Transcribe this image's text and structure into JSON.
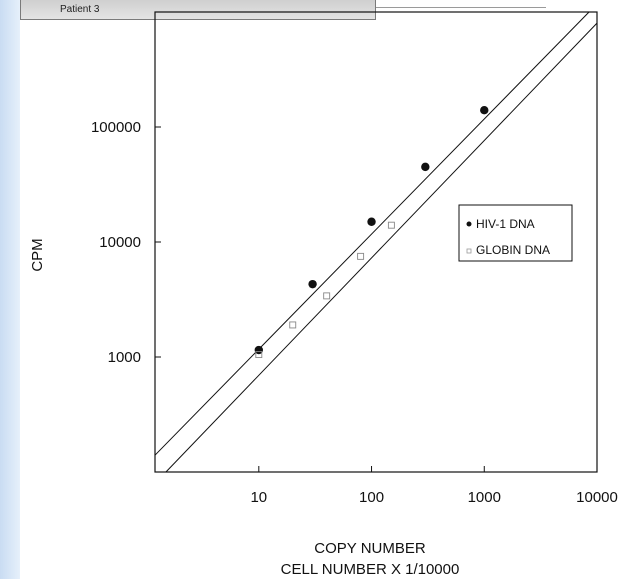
{
  "caption": "Patient 3",
  "chart_data": {
    "type": "scatter",
    "title": "",
    "xlabel": [
      "COPY NUMBER",
      "CELL NUMBER X 1/10000"
    ],
    "ylabel": "CPM",
    "xscale": "log",
    "yscale": "log",
    "xlim": [
      1.2,
      10000
    ],
    "ylim": [
      100,
      1000000
    ],
    "x_ticks": [
      10,
      100,
      1000,
      10000
    ],
    "x_tick_labels": [
      "10",
      "100",
      "1000",
      "10000"
    ],
    "y_ticks": [
      1000,
      10000,
      100000
    ],
    "y_tick_labels": [
      "1000",
      "10000",
      "100000"
    ],
    "grid": false,
    "legend_position": "right",
    "series": [
      {
        "name": "HIV-1 DNA",
        "marker": "filled-circle",
        "points": [
          {
            "x": 10,
            "y": 1150
          },
          {
            "x": 30,
            "y": 4300
          },
          {
            "x": 100,
            "y": 15000
          },
          {
            "x": 300,
            "y": 45000
          },
          {
            "x": 1000,
            "y": 140000
          }
        ]
      },
      {
        "name": "GLOBIN DNA",
        "marker": "open-square",
        "points": [
          {
            "x": 10,
            "y": 1050
          },
          {
            "x": 20,
            "y": 1900
          },
          {
            "x": 40,
            "y": 3400
          },
          {
            "x": 80,
            "y": 7500
          },
          {
            "x": 150,
            "y": 14000
          }
        ]
      }
    ],
    "fit_lines": [
      {
        "name": "upper",
        "from": {
          "x": 1.2,
          "y": 140
        },
        "to": {
          "x": 8500,
          "y": 1000000
        }
      },
      {
        "name": "lower",
        "from": {
          "x": 1.5,
          "y": 100
        },
        "to": {
          "x": 10000,
          "y": 800000
        }
      }
    ]
  }
}
